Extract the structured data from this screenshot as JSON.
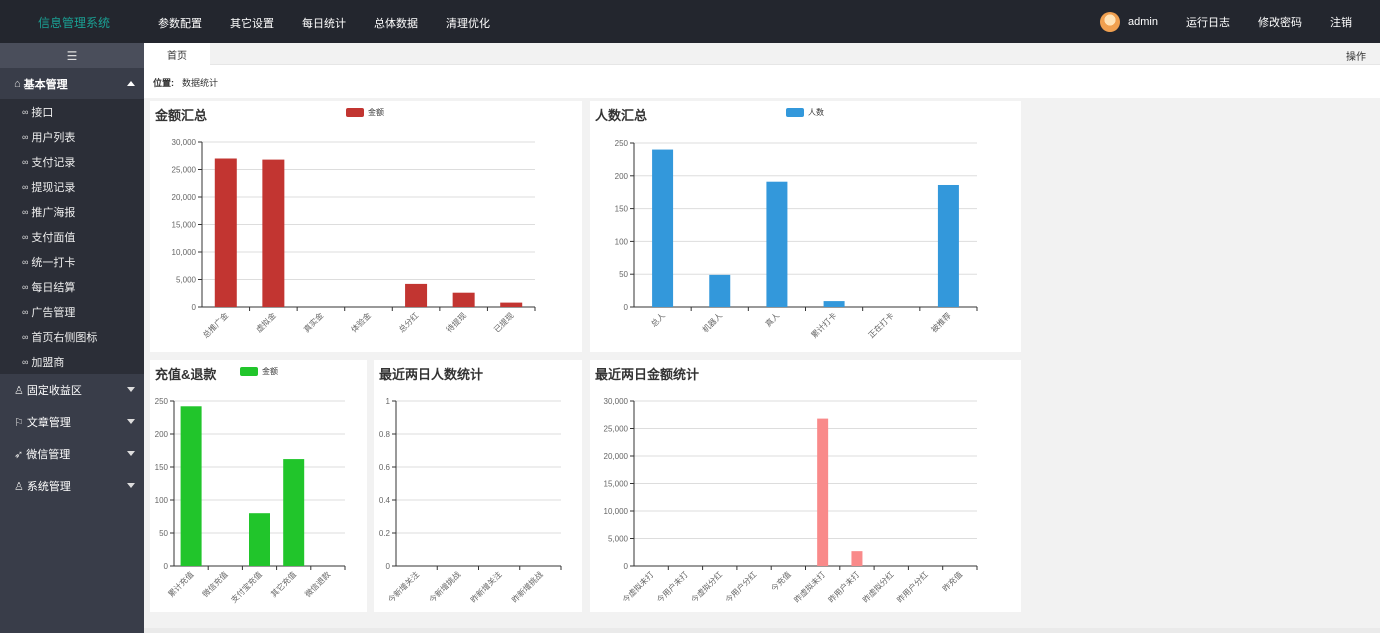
{
  "app": {
    "brand": "信息管理系统"
  },
  "topnav": [
    "参数配置",
    "其它设置",
    "每日统计",
    "总体数据",
    "清理优化"
  ],
  "user": {
    "name": "admin"
  },
  "toplinks": [
    "运行日志",
    "修改密码",
    "注销"
  ],
  "sidebar": {
    "toggle_icon": "☰",
    "groups": [
      {
        "label": "基本管理",
        "icon": "home-icon",
        "glyph": "⌂",
        "expanded": true,
        "items": [
          "接口",
          "用户列表",
          "支付记录",
          "提现记录",
          "推广海报",
          "支付面值",
          "统一打卡",
          "每日结算",
          "广告管理",
          "首页右侧图标",
          "加盟商"
        ]
      },
      {
        "label": "固定收益区",
        "icon": "user-group-icon",
        "glyph": "♙",
        "expanded": false,
        "items": []
      },
      {
        "label": "文章管理",
        "icon": "flag-icon",
        "glyph": "⚐",
        "expanded": false,
        "items": []
      },
      {
        "label": "微信管理",
        "icon": "send-icon",
        "glyph": "➶",
        "expanded": false,
        "items": []
      },
      {
        "label": "系统管理",
        "icon": "user-icon",
        "glyph": "♙",
        "expanded": false,
        "items": []
      }
    ]
  },
  "tabs": {
    "home": "首页",
    "ops": "操作"
  },
  "breadcrumb": {
    "label": "位置:",
    "value": "数据统计"
  },
  "colors": {
    "red": "#c23531",
    "blue": "#3398db",
    "green": "#21c52b",
    "pink": "#f98a8a"
  },
  "chart_data": [
    {
      "id": "amount",
      "type": "bar",
      "title": "金额汇总",
      "legend": "金额",
      "color": "#c23531",
      "categories": [
        "总推广金",
        "虚拟金",
        "真实金",
        "体验金",
        "总分红",
        "待提现",
        "已提现"
      ],
      "values": [
        27000,
        26800,
        0,
        0,
        4200,
        2600,
        800
      ],
      "ylim": [
        0,
        30000
      ],
      "yticks": [
        0,
        5000,
        10000,
        15000,
        20000,
        25000,
        30000
      ],
      "grid": true
    },
    {
      "id": "people",
      "type": "bar",
      "title": "人数汇总",
      "legend": "人数",
      "color": "#3398db",
      "categories": [
        "总人",
        "机器人",
        "真人",
        "累计打卡",
        "正在打卡",
        "被推荐"
      ],
      "values": [
        240,
        49,
        191,
        9,
        0,
        186
      ],
      "ylim": [
        0,
        250
      ],
      "yticks": [
        0,
        50,
        100,
        150,
        200,
        250
      ],
      "grid": true
    },
    {
      "id": "recharge",
      "type": "bar",
      "title": "充值&退款",
      "legend": "金额",
      "color": "#21c52b",
      "categories": [
        "累计充值",
        "微信充值",
        "支付宝充值",
        "其它充值",
        "微信退款"
      ],
      "values": [
        242,
        0,
        80,
        162,
        0
      ],
      "ylim": [
        0,
        250
      ],
      "yticks": [
        0,
        50,
        100,
        150,
        200,
        250
      ],
      "grid": true
    },
    {
      "id": "twoday_people",
      "type": "bar",
      "title": "最近两日人数统计",
      "legend": "",
      "color": "#3398db",
      "categories": [
        "今新增关注",
        "今新增挑战",
        "昨新增关注",
        "昨新增挑战"
      ],
      "values": [
        0,
        0,
        0,
        0
      ],
      "ylim": [
        0,
        1
      ],
      "yticks": [
        0,
        0.2,
        0.4,
        0.6,
        0.8,
        1
      ],
      "grid": true
    },
    {
      "id": "twoday_amount",
      "type": "bar",
      "title": "最近两日金额统计",
      "legend": "",
      "color": "#f98a8a",
      "categories": [
        "今虚拟未打",
        "今用户未打",
        "今虚拟分红",
        "今用户分红",
        "今充值",
        "昨虚拟未打",
        "昨用户未打",
        "昨虚拟分红",
        "昨用户分红",
        "昨充值"
      ],
      "values": [
        0,
        0,
        0,
        0,
        0,
        26800,
        2700,
        0,
        0,
        0
      ],
      "ylim": [
        0,
        30000
      ],
      "yticks": [
        0,
        5000,
        10000,
        15000,
        20000,
        25000,
        30000
      ],
      "grid": true
    }
  ]
}
